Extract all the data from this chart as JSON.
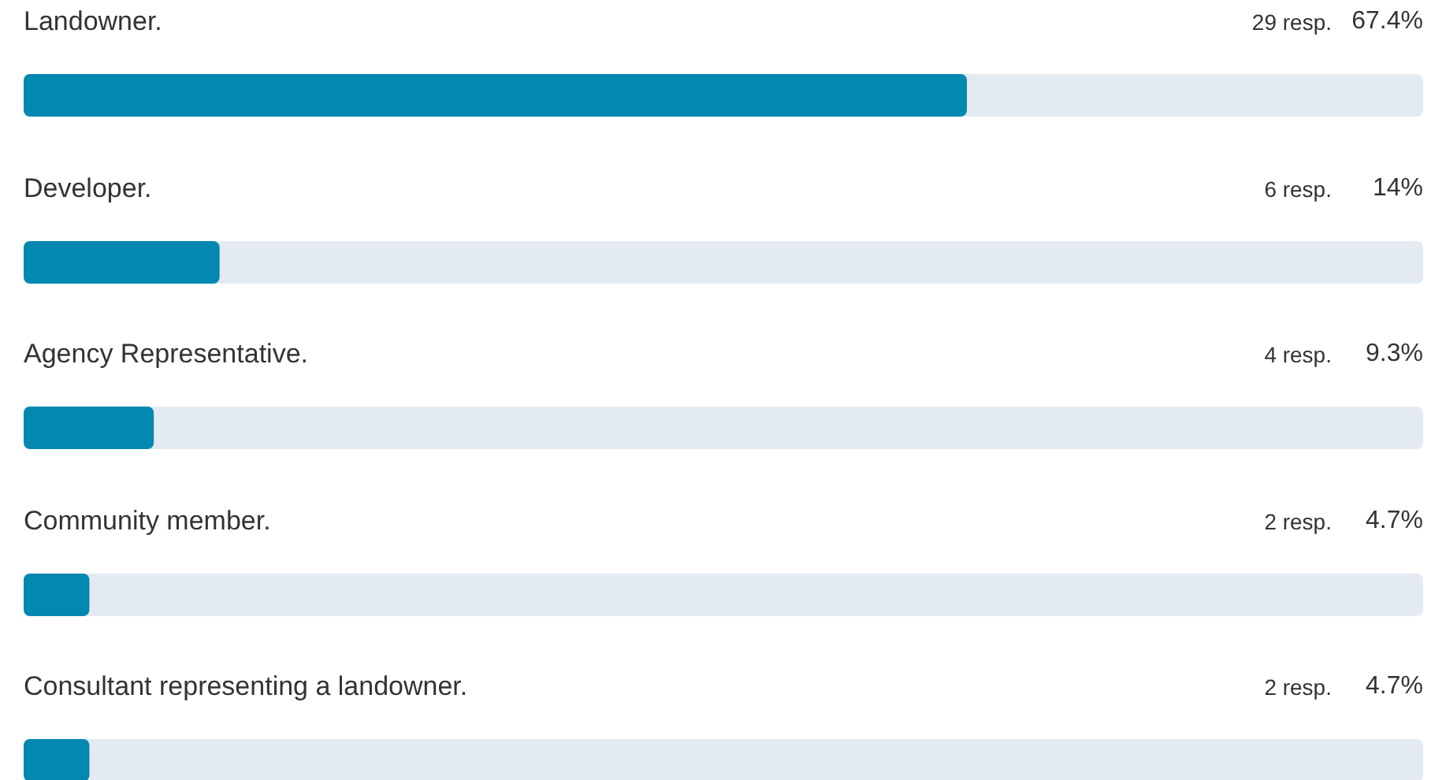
{
  "chart_data": {
    "type": "bar",
    "orientation": "horizontal",
    "categories": [
      "Landowner.",
      "Developer.",
      "Agency Representative.",
      "Community member.",
      "Consultant representing a landowner."
    ],
    "values": [
      67.4,
      14,
      9.3,
      4.7,
      4.7
    ],
    "value_labels": [
      "67.4%",
      "14%",
      "9.3%",
      "4.7%",
      "4.7%"
    ],
    "color": "#0388b0",
    "xlim": [
      0,
      100
    ],
    "annotations": [
      "29 resp.",
      "6 resp.",
      "4 resp.",
      "2 resp.",
      "2 resp."
    ]
  }
}
